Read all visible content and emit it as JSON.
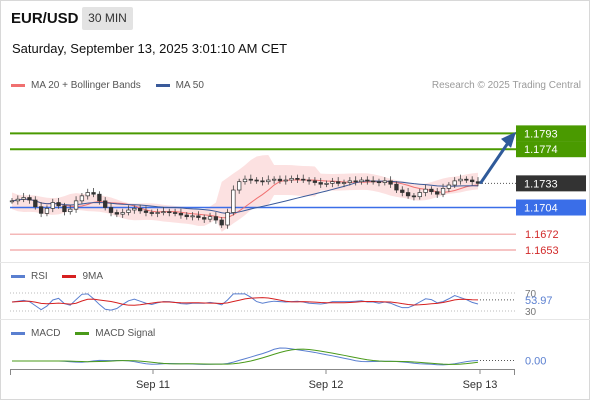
{
  "header": {
    "symbol": "EUR/USD",
    "timeframe": "30 MIN",
    "datetime": "Saturday, September 13, 2025 3:01:10 AM CET",
    "credit": "Research © 2025 Trading Central"
  },
  "legends": {
    "price": [
      {
        "label": "MA 20 + Bollinger Bands",
        "color": "#f07070"
      },
      {
        "label": "MA 50",
        "color": "#3a5a9a"
      }
    ],
    "rsi": [
      {
        "label": "RSI",
        "color": "#5a7fd0"
      },
      {
        "label": "9MA",
        "color": "#d62020"
      }
    ],
    "macd": [
      {
        "label": "MACD",
        "color": "#5a7fd0"
      },
      {
        "label": "MACD Signal",
        "color": "#4a9a1a"
      }
    ]
  },
  "colors": {
    "resistance": "#4a9a00",
    "support": "#3a6ee8",
    "target_line": "#f0a0a0",
    "target_text": "#d22a2a",
    "current": "#333333",
    "arrow": "#2f5a9a",
    "band": "#fbdcdc"
  },
  "chart_data": [
    {
      "type": "line",
      "name": "price",
      "y_range": [
        1.164,
        1.1805
      ],
      "x_ticks": [
        "Sep 11",
        "Sep 12",
        "Sep 13"
      ],
      "levels": [
        {
          "value": 1.1793,
          "label": "1.1793",
          "kind": "resistance"
        },
        {
          "value": 1.1774,
          "label": "1.1774",
          "kind": "resistance"
        },
        {
          "value": 1.1733,
          "label": "1.1733",
          "kind": "current"
        },
        {
          "value": 1.1704,
          "label": "1.1704",
          "kind": "support"
        },
        {
          "value": 1.1672,
          "label": "1.1672",
          "kind": "target"
        },
        {
          "value": 1.1653,
          "label": "1.1653",
          "kind": "target"
        }
      ],
      "close_series": [
        1.1712,
        1.1714,
        1.1716,
        1.1713,
        1.1705,
        1.1697,
        1.1703,
        1.171,
        1.1706,
        1.1699,
        1.1702,
        1.1712,
        1.1718,
        1.1722,
        1.172,
        1.1712,
        1.1704,
        1.1698,
        1.1696,
        1.1698,
        1.1701,
        1.1703,
        1.17,
        1.1698,
        1.1697,
        1.1698,
        1.1699,
        1.1698,
        1.1697,
        1.1695,
        1.1693,
        1.1694,
        1.1692,
        1.169,
        1.1693,
        1.1689,
        1.1683,
        1.1698,
        1.1725,
        1.1735,
        1.1738,
        1.1737,
        1.1736,
        1.1735,
        1.1737,
        1.1738,
        1.1736,
        1.1737,
        1.1739,
        1.1738,
        1.1737,
        1.1736,
        1.1734,
        1.1732,
        1.1733,
        1.1735,
        1.1733,
        1.1734,
        1.1736,
        1.1735,
        1.1737,
        1.1736,
        1.1735,
        1.1734,
        1.1736,
        1.1732,
        1.1725,
        1.1722,
        1.1718,
        1.1717,
        1.1722,
        1.1726,
        1.1723,
        1.172,
        1.1727,
        1.1731,
        1.1736,
        1.1738,
        1.1737,
        1.1735,
        1.1733
      ]
    },
    {
      "type": "line",
      "name": "RSI",
      "y_range": [
        30,
        70
      ],
      "ticks": [
        "70",
        "30"
      ],
      "last_value": "53.97"
    },
    {
      "type": "line",
      "name": "MACD",
      "last_value": "0.00"
    }
  ]
}
